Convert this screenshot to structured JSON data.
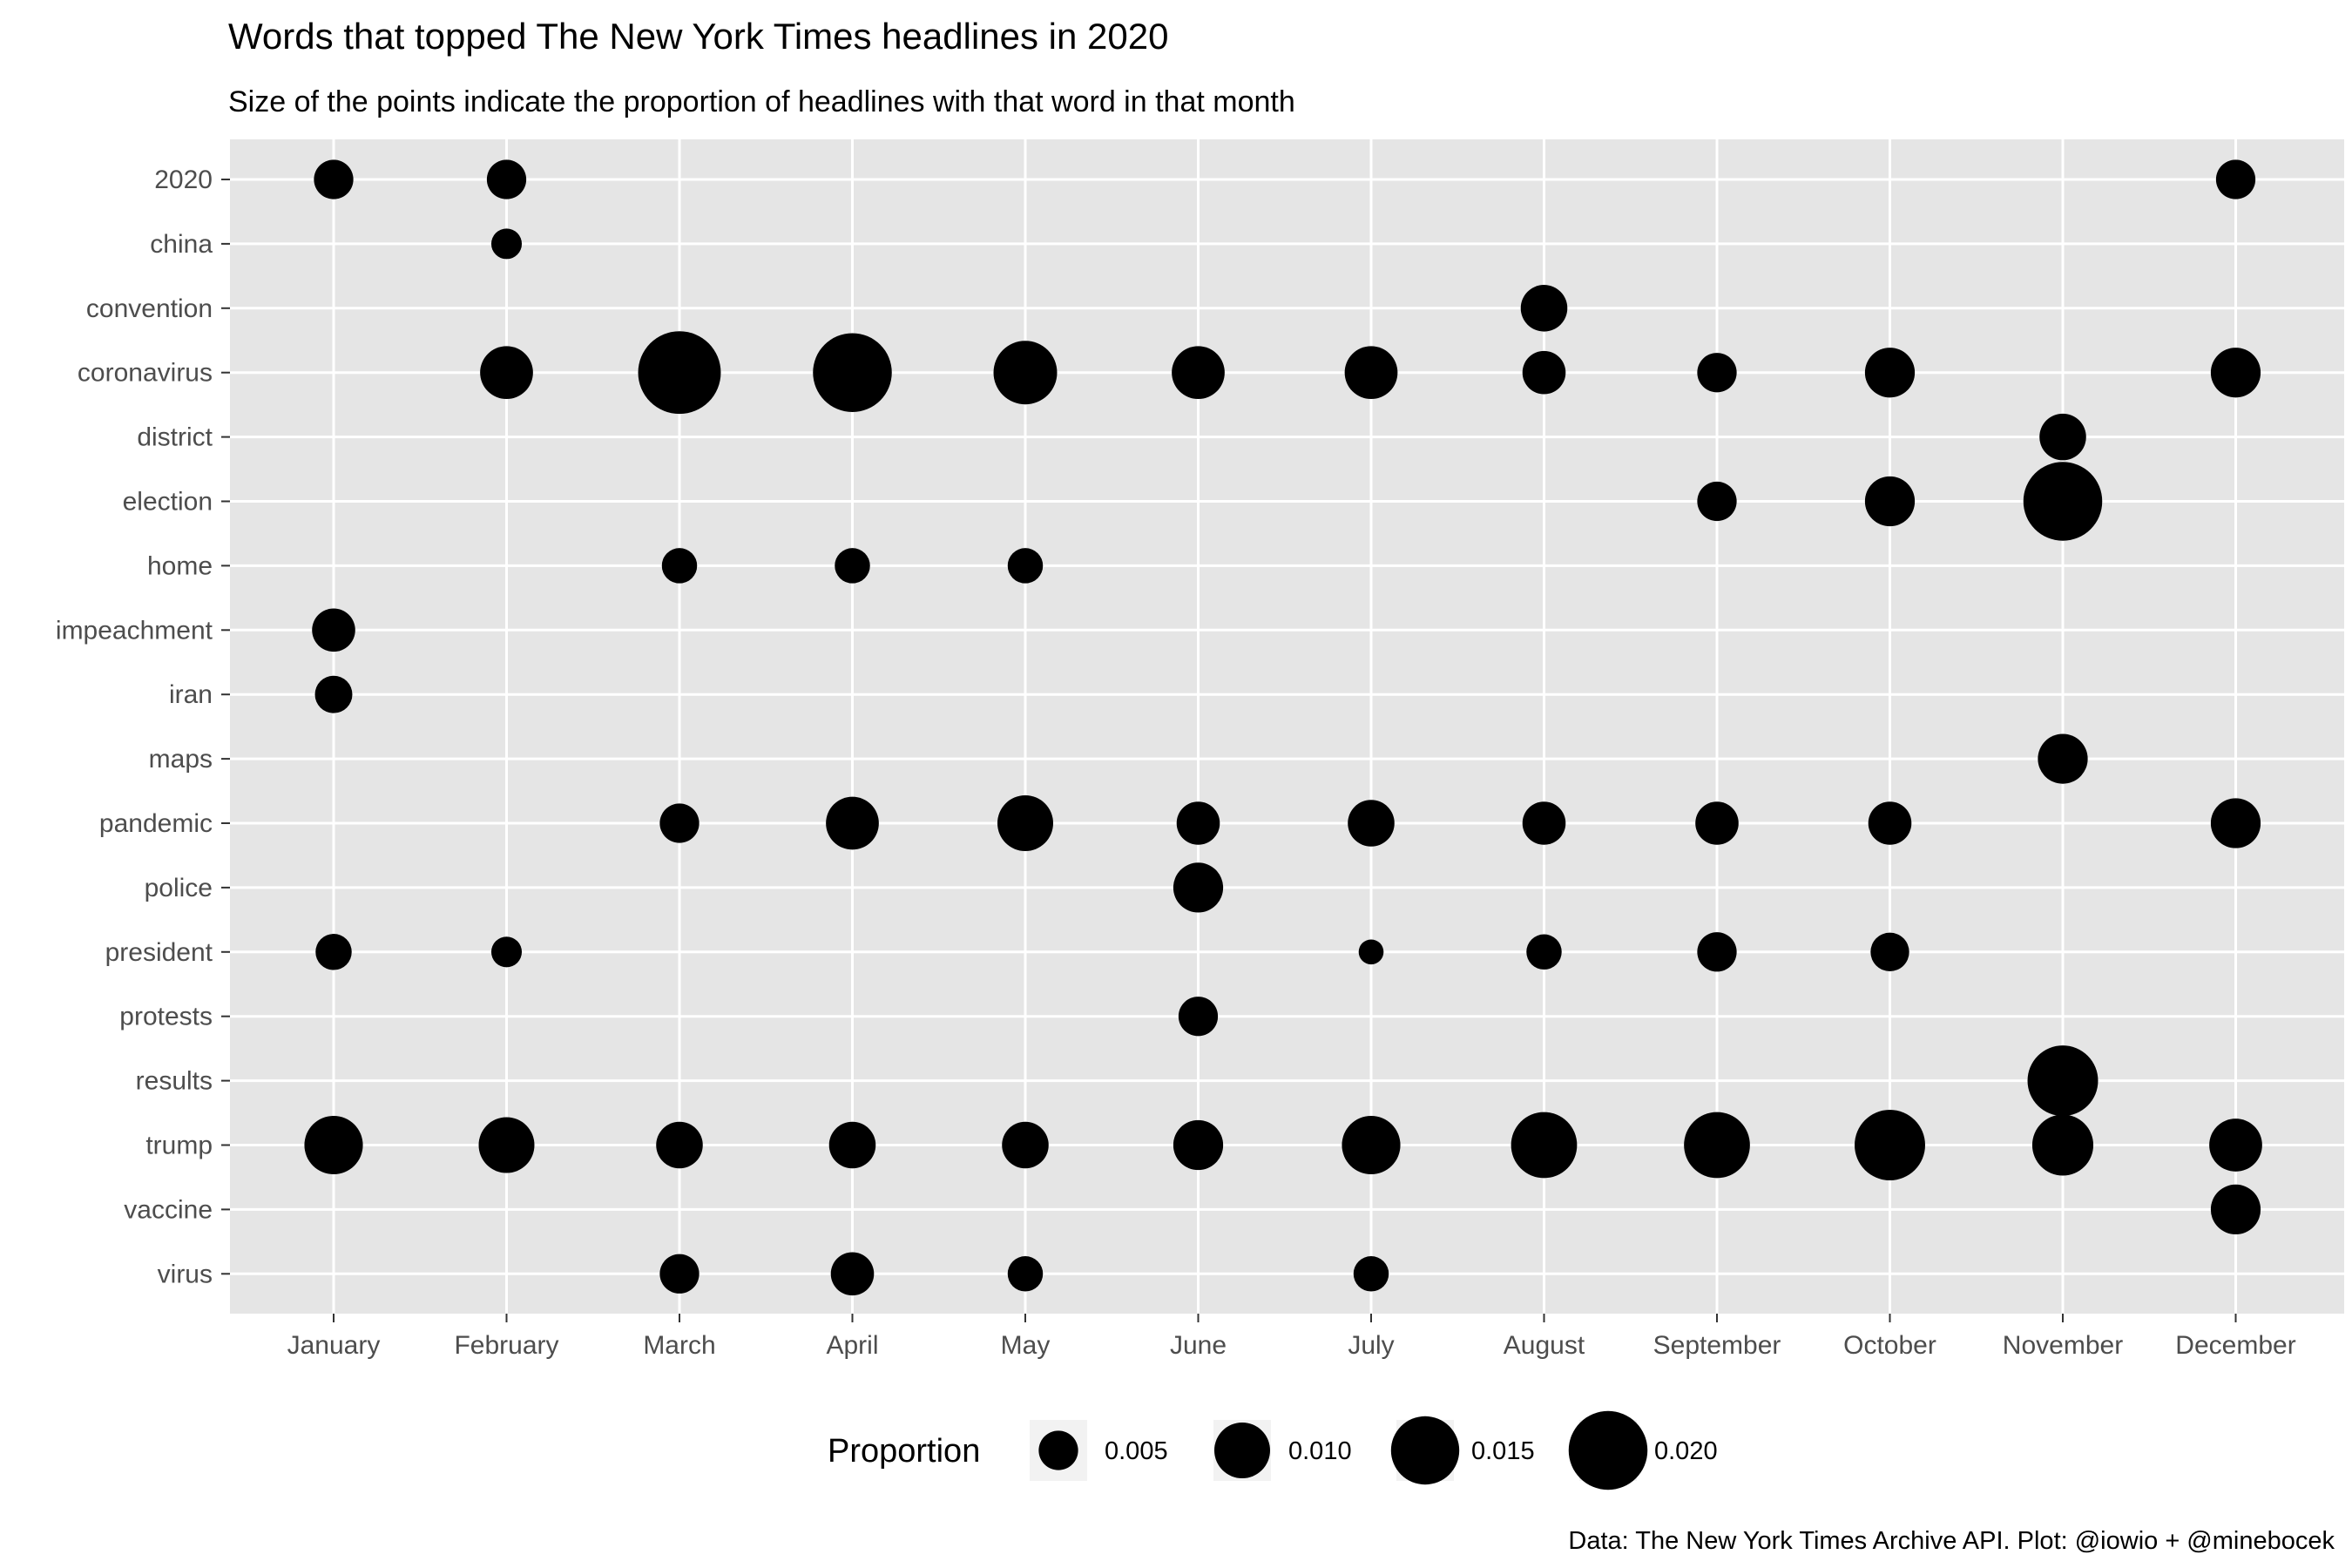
{
  "chart_data": {
    "type": "scatter",
    "title": "Words that topped The New York Times headlines in 2020",
    "subtitle": "Size of the points indicate the proportion of headlines with that word in that month",
    "caption": "Data: The New York Times Archive API. Plot: @iowio + @minebocek",
    "x_categories": [
      "January",
      "February",
      "March",
      "April",
      "May",
      "June",
      "July",
      "August",
      "September",
      "October",
      "November",
      "December"
    ],
    "y_categories": [
      "2020",
      "china",
      "convention",
      "coronavirus",
      "district",
      "election",
      "home",
      "impeachment",
      "iran",
      "maps",
      "pandemic",
      "police",
      "president",
      "protests",
      "results",
      "trump",
      "vaccine",
      "virus"
    ],
    "legend": {
      "title": "Proportion",
      "position": "bottom",
      "entries": [
        {
          "label": "0.005",
          "value": 0.005
        },
        {
          "label": "0.010",
          "value": 0.01
        },
        {
          "label": "0.015",
          "value": 0.015
        },
        {
          "label": "0.020",
          "value": 0.02
        }
      ]
    },
    "grid": true,
    "points": [
      {
        "word": "2020",
        "month": "January",
        "proportion": 0.005
      },
      {
        "word": "2020",
        "month": "February",
        "proportion": 0.005
      },
      {
        "word": "2020",
        "month": "December",
        "proportion": 0.005
      },
      {
        "word": "china",
        "month": "February",
        "proportion": 0.003
      },
      {
        "word": "convention",
        "month": "August",
        "proportion": 0.007
      },
      {
        "word": "coronavirus",
        "month": "February",
        "proportion": 0.009
      },
      {
        "word": "coronavirus",
        "month": "March",
        "proportion": 0.022
      },
      {
        "word": "coronavirus",
        "month": "April",
        "proportion": 0.02
      },
      {
        "word": "coronavirus",
        "month": "May",
        "proportion": 0.013
      },
      {
        "word": "coronavirus",
        "month": "June",
        "proportion": 0.009
      },
      {
        "word": "coronavirus",
        "month": "July",
        "proportion": 0.009
      },
      {
        "word": "coronavirus",
        "month": "August",
        "proportion": 0.006
      },
      {
        "word": "coronavirus",
        "month": "September",
        "proportion": 0.005
      },
      {
        "word": "coronavirus",
        "month": "October",
        "proportion": 0.008
      },
      {
        "word": "coronavirus",
        "month": "December",
        "proportion": 0.008
      },
      {
        "word": "district",
        "month": "November",
        "proportion": 0.007
      },
      {
        "word": "election",
        "month": "September",
        "proportion": 0.005
      },
      {
        "word": "election",
        "month": "October",
        "proportion": 0.008
      },
      {
        "word": "election",
        "month": "November",
        "proportion": 0.02
      },
      {
        "word": "home",
        "month": "March",
        "proportion": 0.004
      },
      {
        "word": "home",
        "month": "April",
        "proportion": 0.004
      },
      {
        "word": "home",
        "month": "May",
        "proportion": 0.004
      },
      {
        "word": "impeachment",
        "month": "January",
        "proportion": 0.006
      },
      {
        "word": "iran",
        "month": "January",
        "proportion": 0.0045
      },
      {
        "word": "maps",
        "month": "November",
        "proportion": 0.008
      },
      {
        "word": "pandemic",
        "month": "March",
        "proportion": 0.005
      },
      {
        "word": "pandemic",
        "month": "April",
        "proportion": 0.009
      },
      {
        "word": "pandemic",
        "month": "May",
        "proportion": 0.01
      },
      {
        "word": "pandemic",
        "month": "June",
        "proportion": 0.006
      },
      {
        "word": "pandemic",
        "month": "July",
        "proportion": 0.007
      },
      {
        "word": "pandemic",
        "month": "August",
        "proportion": 0.006
      },
      {
        "word": "pandemic",
        "month": "September",
        "proportion": 0.006
      },
      {
        "word": "pandemic",
        "month": "October",
        "proportion": 0.006
      },
      {
        "word": "pandemic",
        "month": "December",
        "proportion": 0.008
      },
      {
        "word": "police",
        "month": "June",
        "proportion": 0.008
      },
      {
        "word": "president",
        "month": "January",
        "proportion": 0.0042
      },
      {
        "word": "president",
        "month": "February",
        "proportion": 0.003
      },
      {
        "word": "president",
        "month": "July",
        "proportion": 0.002
      },
      {
        "word": "president",
        "month": "August",
        "proportion": 0.004
      },
      {
        "word": "president",
        "month": "September",
        "proportion": 0.005
      },
      {
        "word": "president",
        "month": "October",
        "proportion": 0.0048
      },
      {
        "word": "protests",
        "month": "June",
        "proportion": 0.005
      },
      {
        "word": "results",
        "month": "November",
        "proportion": 0.016
      },
      {
        "word": "trump",
        "month": "January",
        "proportion": 0.011
      },
      {
        "word": "trump",
        "month": "February",
        "proportion": 0.01
      },
      {
        "word": "trump",
        "month": "March",
        "proportion": 0.007
      },
      {
        "word": "trump",
        "month": "April",
        "proportion": 0.007
      },
      {
        "word": "trump",
        "month": "May",
        "proportion": 0.007
      },
      {
        "word": "trump",
        "month": "June",
        "proportion": 0.008
      },
      {
        "word": "trump",
        "month": "July",
        "proportion": 0.011
      },
      {
        "word": "trump",
        "month": "August",
        "proportion": 0.014
      },
      {
        "word": "trump",
        "month": "September",
        "proportion": 0.014
      },
      {
        "word": "trump",
        "month": "October",
        "proportion": 0.016
      },
      {
        "word": "trump",
        "month": "November",
        "proportion": 0.012
      },
      {
        "word": "trump",
        "month": "December",
        "proportion": 0.009
      },
      {
        "word": "vaccine",
        "month": "December",
        "proportion": 0.008
      },
      {
        "word": "virus",
        "month": "March",
        "proportion": 0.005
      },
      {
        "word": "virus",
        "month": "April",
        "proportion": 0.006
      },
      {
        "word": "virus",
        "month": "May",
        "proportion": 0.004
      },
      {
        "word": "virus",
        "month": "July",
        "proportion": 0.004
      }
    ]
  }
}
